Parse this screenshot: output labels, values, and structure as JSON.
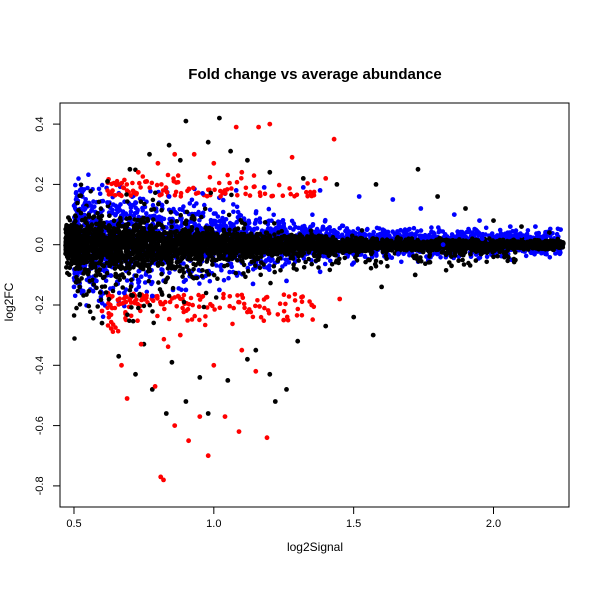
{
  "chart_data": {
    "type": "scatter",
    "title": "Fold change vs average abundance",
    "xlabel": "log2Signal",
    "ylabel": "log2FC",
    "xlim": [
      0.45,
      2.27
    ],
    "ylim": [
      -0.87,
      0.47
    ],
    "xticks": [
      0.5,
      1.0,
      1.5,
      2.0
    ],
    "xtick_labels": [
      "0.5",
      "1.0",
      "1.5",
      "2.0"
    ],
    "yticks": [
      -0.8,
      -0.6,
      -0.4,
      -0.2,
      0.0,
      0.2,
      0.4
    ],
    "ytick_labels": [
      "-0.8",
      "-0.6",
      "-0.4",
      "-0.2",
      "0.0",
      "0.2",
      "0.4"
    ],
    "grid": false,
    "legend": "none",
    "series": [
      {
        "color": "#000000",
        "points": [
          [
            0.9,
            0.41
          ],
          [
            1.02,
            0.42
          ],
          [
            0.77,
            0.3
          ],
          [
            0.84,
            0.33
          ],
          [
            0.98,
            0.34
          ],
          [
            1.06,
            0.31
          ],
          [
            0.62,
            0.21
          ],
          [
            0.7,
            0.25
          ],
          [
            0.88,
            0.28
          ],
          [
            1.12,
            0.28
          ],
          [
            1.2,
            0.24
          ],
          [
            1.32,
            0.22
          ],
          [
            1.44,
            0.2
          ],
          [
            1.58,
            0.2
          ],
          [
            1.73,
            0.25
          ],
          [
            1.8,
            0.16
          ],
          [
            1.9,
            0.12
          ],
          [
            2.0,
            0.08
          ],
          [
            2.1,
            0.06
          ],
          [
            2.2,
            0.04
          ],
          [
            0.48,
            0.09
          ],
          [
            0.47,
            -0.03
          ],
          [
            0.52,
            -0.14
          ],
          [
            0.6,
            -0.26
          ],
          [
            0.66,
            -0.37
          ],
          [
            0.72,
            -0.43
          ],
          [
            0.78,
            -0.48
          ],
          [
            0.83,
            -0.56
          ],
          [
            0.9,
            -0.52
          ],
          [
            0.98,
            -0.56
          ],
          [
            1.05,
            -0.45
          ],
          [
            1.12,
            -0.38
          ],
          [
            1.2,
            -0.43
          ],
          [
            1.26,
            -0.48
          ],
          [
            1.22,
            -0.52
          ],
          [
            1.3,
            -0.32
          ],
          [
            1.4,
            -0.27
          ],
          [
            1.5,
            -0.24
          ],
          [
            1.57,
            -0.3
          ],
          [
            1.6,
            -0.14
          ],
          [
            1.72,
            -0.1
          ],
          [
            1.85,
            -0.07
          ],
          [
            2.0,
            -0.04
          ],
          [
            2.12,
            -0.01
          ],
          [
            0.85,
            -0.39
          ],
          [
            0.95,
            -0.44
          ],
          [
            1.15,
            -0.35
          ],
          [
            0.75,
            -0.33
          ]
        ]
      },
      {
        "color": "#ff0000",
        "points": [
          [
            1.2,
            0.4
          ],
          [
            1.16,
            0.39
          ],
          [
            1.08,
            0.39
          ],
          [
            1.43,
            0.35
          ],
          [
            0.73,
            0.24
          ],
          [
            0.8,
            0.27
          ],
          [
            0.86,
            0.3
          ],
          [
            0.93,
            0.3
          ],
          [
            1.0,
            0.27
          ],
          [
            1.1,
            0.24
          ],
          [
            1.28,
            0.29
          ],
          [
            1.4,
            0.22
          ],
          [
            0.66,
            0.2
          ],
          [
            0.76,
            0.21
          ],
          [
            0.63,
            -0.2
          ],
          [
            0.67,
            -0.4
          ],
          [
            0.69,
            -0.51
          ],
          [
            0.74,
            -0.33
          ],
          [
            0.79,
            -0.47
          ],
          [
            0.81,
            -0.77
          ],
          [
            0.82,
            -0.78
          ],
          [
            0.86,
            -0.6
          ],
          [
            0.91,
            -0.65
          ],
          [
            0.95,
            -0.57
          ],
          [
            0.98,
            -0.7
          ],
          [
            1.04,
            -0.57
          ],
          [
            1.09,
            -0.62
          ],
          [
            1.19,
            -0.64
          ],
          [
            1.0,
            -0.4
          ],
          [
            1.1,
            -0.35
          ],
          [
            1.25,
            -0.25
          ],
          [
            1.35,
            -0.2
          ],
          [
            1.45,
            -0.18
          ],
          [
            0.6,
            -0.22
          ],
          [
            0.88,
            -0.3
          ],
          [
            1.15,
            -0.42
          ]
        ]
      },
      {
        "color": "#0000ff",
        "points": [
          [
            2.24,
            0.05
          ],
          [
            2.15,
            0.06
          ],
          [
            2.06,
            0.06
          ],
          [
            1.95,
            0.08
          ],
          [
            1.86,
            0.1
          ],
          [
            1.74,
            0.12
          ],
          [
            1.64,
            0.15
          ],
          [
            1.52,
            0.16
          ],
          [
            1.38,
            0.18
          ],
          [
            1.32,
            0.19
          ],
          [
            1.18,
            0.19
          ],
          [
            1.08,
            0.18
          ],
          [
            0.96,
            0.17
          ],
          [
            0.84,
            0.16
          ],
          [
            0.72,
            0.14
          ],
          [
            0.62,
            0.14
          ],
          [
            0.54,
            0.12
          ],
          [
            0.5,
            -0.14
          ],
          [
            0.58,
            -0.12
          ],
          [
            0.68,
            -0.16
          ],
          [
            0.78,
            -0.17
          ],
          [
            0.9,
            -0.15
          ],
          [
            1.02,
            -0.15
          ],
          [
            1.14,
            -0.13
          ],
          [
            1.26,
            -0.12
          ],
          [
            1.38,
            -0.09
          ],
          [
            1.5,
            -0.06
          ],
          [
            1.66,
            -0.03
          ],
          [
            1.82,
            0.0
          ],
          [
            1.96,
            0.02
          ],
          [
            2.1,
            0.03
          ]
        ]
      }
    ]
  }
}
